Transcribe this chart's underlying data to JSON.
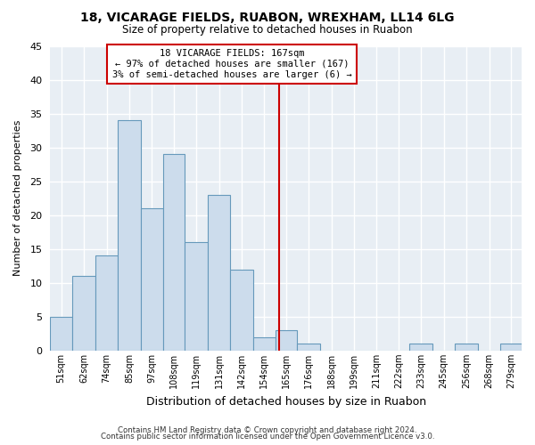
{
  "title1": "18, VICARAGE FIELDS, RUABON, WREXHAM, LL14 6LG",
  "title2": "Size of property relative to detached houses in Ruabon",
  "xlabel": "Distribution of detached houses by size in Ruabon",
  "ylabel": "Number of detached properties",
  "bin_labels": [
    "51sqm",
    "62sqm",
    "74sqm",
    "85sqm",
    "97sqm",
    "108sqm",
    "119sqm",
    "131sqm",
    "142sqm",
    "154sqm",
    "165sqm",
    "176sqm",
    "188sqm",
    "199sqm",
    "211sqm",
    "222sqm",
    "233sqm",
    "245sqm",
    "256sqm",
    "268sqm",
    "279sqm"
  ],
  "bin_edges": [
    51,
    62,
    74,
    85,
    97,
    108,
    119,
    131,
    142,
    154,
    165,
    176,
    188,
    199,
    211,
    222,
    233,
    245,
    256,
    268,
    279
  ],
  "bin_width": 11,
  "counts": [
    5,
    11,
    14,
    34,
    21,
    29,
    16,
    23,
    12,
    2,
    3,
    1,
    0,
    0,
    0,
    0,
    1,
    0,
    1,
    0,
    1
  ],
  "bar_color": "#ccdcec",
  "bar_edge_color": "#6699bb",
  "vline_x": 167,
  "vline_color": "#cc0000",
  "annotation_title": "18 VICARAGE FIELDS: 167sqm",
  "annotation_line1": "← 97% of detached houses are smaller (167)",
  "annotation_line2": "3% of semi-detached houses are larger (6) →",
  "annotation_box_color": "#cc0000",
  "ylim": [
    0,
    45
  ],
  "yticks": [
    0,
    5,
    10,
    15,
    20,
    25,
    30,
    35,
    40,
    45
  ],
  "footer1": "Contains HM Land Registry data © Crown copyright and database right 2024.",
  "footer2": "Contains public sector information licensed under the Open Government Licence v3.0.",
  "bg_color": "#ffffff",
  "plot_bg_color": "#e8eef4",
  "grid_color": "#ffffff"
}
